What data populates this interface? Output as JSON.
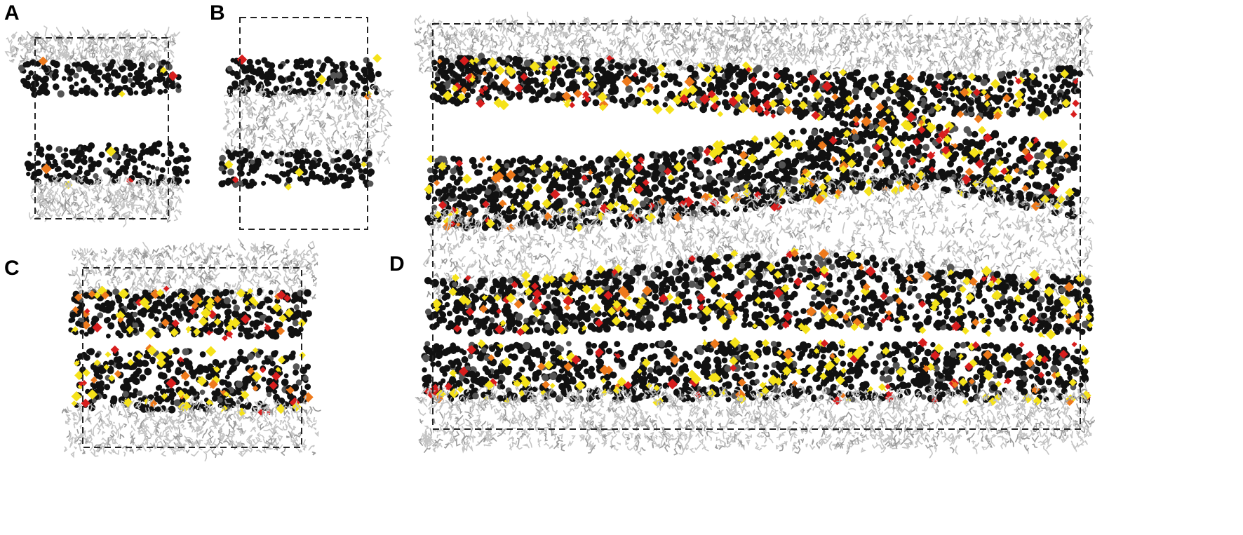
{
  "figure": {
    "panels": [
      {
        "id": "A",
        "label": "A",
        "layers": [
          "tails",
          "heads",
          "gap",
          "heads",
          "tails"
        ],
        "glycolipid_density": 0.02
      },
      {
        "id": "B",
        "label": "B",
        "layers": [
          "heads",
          "tails",
          "heads"
        ],
        "glycolipid_density": 0.03
      },
      {
        "id": "C",
        "label": "C",
        "layers": [
          "tails",
          "heads",
          "gap",
          "heads",
          "tails"
        ],
        "glycolipid_density": 0.18
      },
      {
        "id": "D",
        "label": "D",
        "layers": [
          "tails",
          "heads",
          "gap",
          "heads",
          "tails",
          "heads",
          "gap",
          "heads",
          "tails"
        ],
        "glycolipid_density": 0.16
      }
    ],
    "colors": {
      "tails": "#c4c4c4",
      "tails_dark": "#9a9a9a",
      "heads": "#111111",
      "heads_grey": "#555555",
      "glyco_yellow": "#f5e21a",
      "glyco_orange": "#ee7a1c",
      "glyco_red": "#d81e1e",
      "box_line": "#222222",
      "background": "#ffffff"
    }
  }
}
